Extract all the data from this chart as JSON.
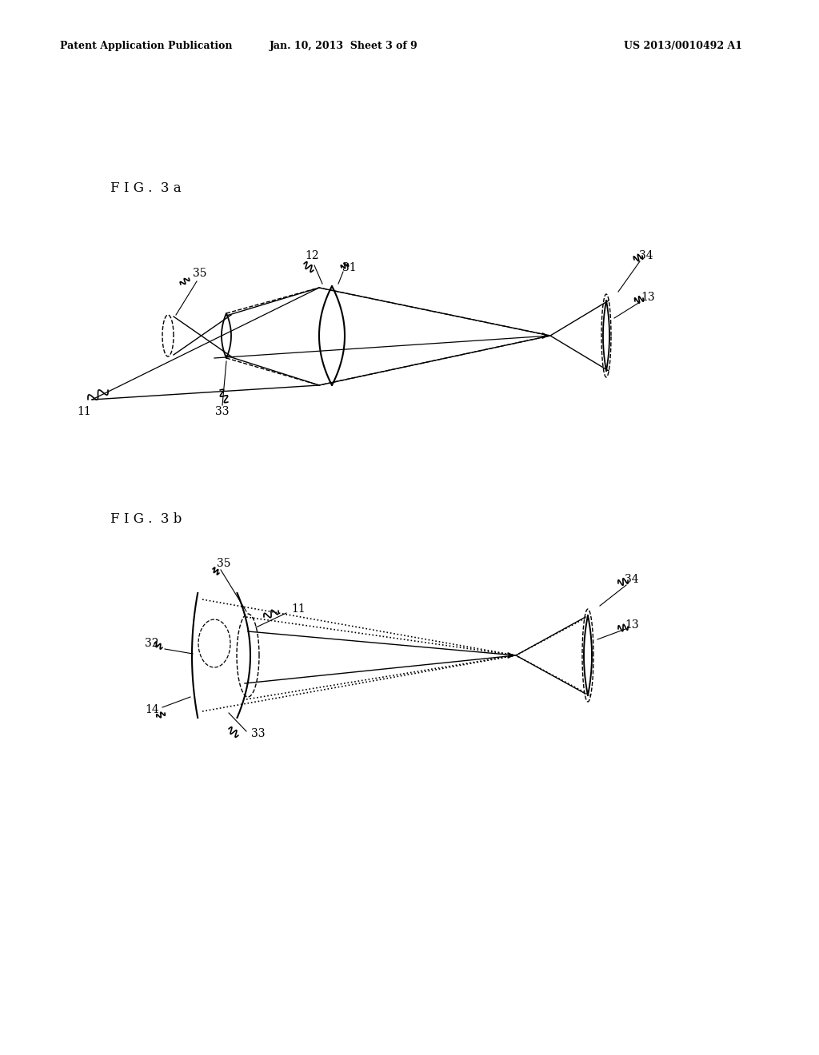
{
  "background_color": "#ffffff",
  "header_left": "Patent Application Publication",
  "header_center": "Jan. 10, 2013  Sheet 3 of 9",
  "header_right": "US 2013/0010492 A1",
  "fig3a_label": "F I G .  3 a",
  "fig3b_label": "F I G .  3 b"
}
